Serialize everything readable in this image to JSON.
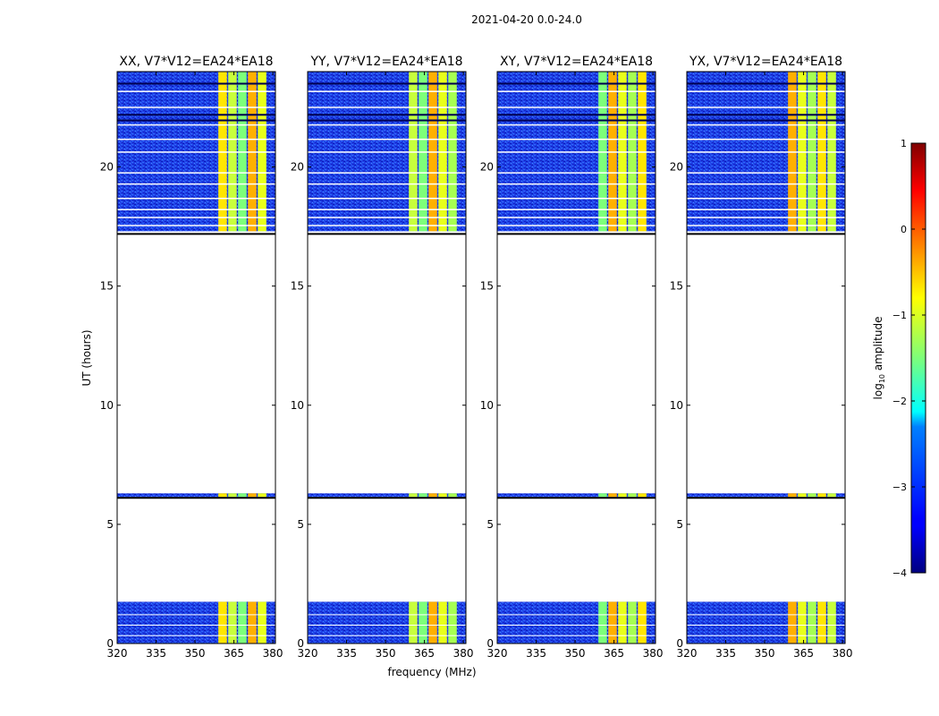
{
  "suptitle": "2021-04-20 0.0-24.0",
  "chart_data": {
    "type": "heatmap",
    "ylabel": "UT (hours)",
    "xlabel": "frequency (MHz)",
    "xlim": [
      320,
      381
    ],
    "ylim": [
      0,
      24
    ],
    "xticks": [
      320,
      335,
      350,
      365,
      380
    ],
    "yticks": [
      0,
      5,
      10,
      15,
      20
    ],
    "data_time_ranges_hours": [
      [
        0,
        1.75
      ],
      [
        6.15,
        6.3
      ],
      [
        17.3,
        24
      ]
    ],
    "rfi_band_mhz": [
      359,
      378
    ],
    "panels": [
      {
        "title": "XX, V7*V12=EA24*EA18"
      },
      {
        "title": "YY, V7*V12=EA24*EA18"
      },
      {
        "title": "XY, V7*V12=EA24*EA18"
      },
      {
        "title": "YX, V7*V12=EA24*EA18"
      }
    ],
    "colorbar": {
      "label": "log10 amplitude",
      "label_main": "log",
      "label_sub": "10",
      "label_rest": " amplitude",
      "range": [
        -4,
        1
      ],
      "ticks": [
        "1",
        "0",
        "−1",
        "−2",
        "−3",
        "−4"
      ],
      "colormap": "jet"
    }
  }
}
